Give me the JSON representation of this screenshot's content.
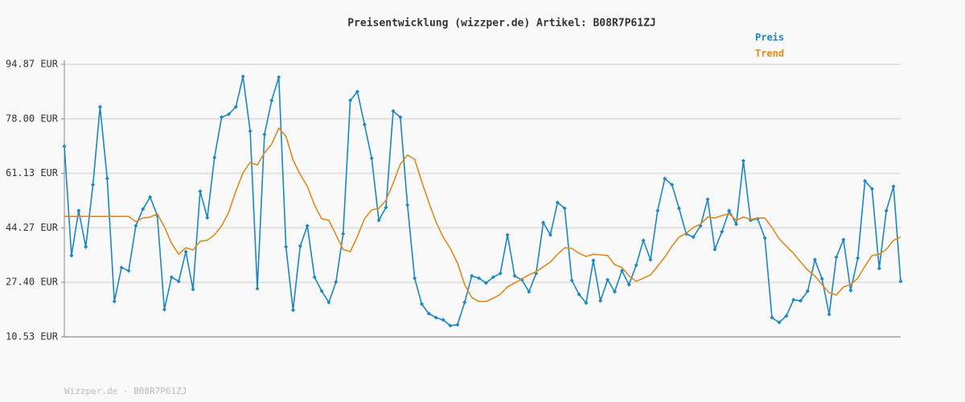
{
  "chart_data": {
    "type": "line",
    "title": "Preisentwicklung (wizzper.de) Artikel: B08R7P61ZJ",
    "footer": "Wizzper.de - B08R7P61ZJ",
    "categories": [
      null,
      null,
      null,
      null,
      null,
      null,
      null,
      null,
      null,
      null,
      null,
      null,
      null,
      null,
      null,
      null,
      null,
      null,
      null,
      null,
      null,
      null,
      null,
      null,
      null,
      null,
      null,
      null,
      null,
      null,
      null,
      null,
      null,
      null,
      null,
      null,
      null,
      null,
      null,
      null,
      null,
      null,
      null,
      null,
      null,
      null,
      null,
      null,
      null,
      null,
      null,
      null,
      null,
      null,
      null,
      null,
      null,
      null,
      null,
      null,
      null,
      null,
      null,
      null,
      null,
      null,
      null,
      null,
      null,
      null,
      null,
      null,
      null,
      null,
      null,
      null,
      null,
      null,
      null,
      null,
      null,
      null,
      null,
      null,
      null,
      null,
      null,
      null,
      null,
      null,
      null,
      null,
      null,
      null,
      null,
      null,
      null,
      null,
      null,
      null,
      null,
      null,
      null,
      null,
      null,
      null,
      null,
      null,
      null,
      null,
      null,
      null,
      null,
      null,
      null,
      null,
      null,
      null
    ],
    "series": [
      {
        "name": "Preis",
        "color": "#1a87c3",
        "markers": true,
        "values": [
          69.5,
          35.7,
          49.6,
          38.4,
          57.6,
          81.7,
          59.5,
          21.5,
          32.0,
          31.0,
          44.9,
          50.1,
          53.8,
          48.1,
          19.0,
          29.0,
          27.7,
          36.9,
          25.2,
          55.6,
          47.4,
          66.0,
          78.5,
          79.4,
          81.7,
          91.1,
          74.2,
          25.5,
          73.2,
          83.7,
          90.9,
          38.4,
          18.8,
          38.6,
          44.9,
          29.0,
          24.7,
          21.2,
          27.5,
          42.4,
          83.7,
          86.4,
          76.2,
          65.8,
          46.6,
          50.6,
          80.4,
          78.5,
          51.3,
          28.7,
          20.7,
          17.7,
          16.5,
          15.8,
          14.0,
          14.3,
          21.2,
          29.4,
          28.7,
          27.2,
          29.0,
          30.2,
          42.1,
          29.4,
          28.2,
          24.5,
          30.2,
          45.9,
          42.1,
          52.1,
          50.3,
          28.0,
          23.7,
          21.0,
          34.2,
          21.7,
          28.2,
          24.5,
          31.0,
          26.7,
          32.7,
          40.4,
          34.4,
          49.6,
          59.5,
          57.6,
          50.3,
          42.4,
          41.4,
          44.9,
          53.1,
          37.6,
          43.1,
          49.6,
          45.4,
          65.0,
          46.6,
          47.1,
          41.1,
          16.5,
          15.0,
          17.0,
          22.0,
          21.7,
          24.7,
          34.4,
          28.5,
          17.5,
          35.2,
          40.6,
          24.9,
          34.9,
          58.8,
          56.3,
          31.7,
          49.6,
          57.1,
          27.7
        ]
      },
      {
        "name": "Trend",
        "color": "#e08a1e",
        "markers": false,
        "values": [
          47.8,
          47.8,
          47.8,
          47.8,
          47.8,
          47.8,
          47.8,
          47.8,
          47.8,
          47.8,
          46.2,
          47.3,
          47.6,
          48.6,
          44.6,
          39.5,
          36.1,
          38.1,
          37.4,
          40.1,
          40.4,
          42.1,
          44.9,
          49.1,
          55.6,
          61.3,
          64.5,
          63.7,
          67.5,
          70.2,
          75.1,
          72.6,
          65.3,
          60.8,
          57.1,
          51.3,
          47.1,
          46.6,
          42.1,
          37.6,
          36.9,
          41.6,
          47.1,
          49.8,
          50.3,
          52.8,
          58.1,
          64.0,
          66.8,
          65.5,
          58.6,
          52.1,
          46.1,
          41.4,
          37.9,
          33.4,
          26.7,
          22.7,
          21.5,
          21.5,
          22.5,
          23.7,
          26.0,
          27.2,
          28.5,
          29.7,
          30.7,
          32.2,
          33.7,
          36.1,
          38.1,
          37.9,
          36.4,
          35.4,
          36.1,
          35.9,
          35.7,
          32.9,
          32.0,
          29.4,
          27.7,
          28.7,
          29.7,
          32.4,
          35.2,
          38.6,
          41.4,
          42.6,
          44.4,
          45.4,
          47.6,
          47.3,
          48.1,
          48.6,
          46.6,
          47.6,
          46.9,
          47.3,
          47.3,
          44.4,
          40.9,
          38.6,
          36.4,
          33.7,
          31.2,
          29.4,
          26.7,
          24.2,
          23.5,
          26.0,
          26.7,
          28.7,
          32.4,
          35.7,
          36.1,
          37.6,
          40.4,
          41.4
        ]
      }
    ],
    "ylim": [
      10.53,
      94.87
    ],
    "yticks": [
      {
        "value": 10.53,
        "label": "10.53 EUR"
      },
      {
        "value": 27.4,
        "label": "27.40 EUR"
      },
      {
        "value": 44.27,
        "label": "44.27 EUR"
      },
      {
        "value": 61.13,
        "label": "61.13 EUR"
      },
      {
        "value": 78.0,
        "label": "78.00 EUR"
      },
      {
        "value": 94.87,
        "label": "94.87 EUR"
      }
    ],
    "grid": true
  }
}
